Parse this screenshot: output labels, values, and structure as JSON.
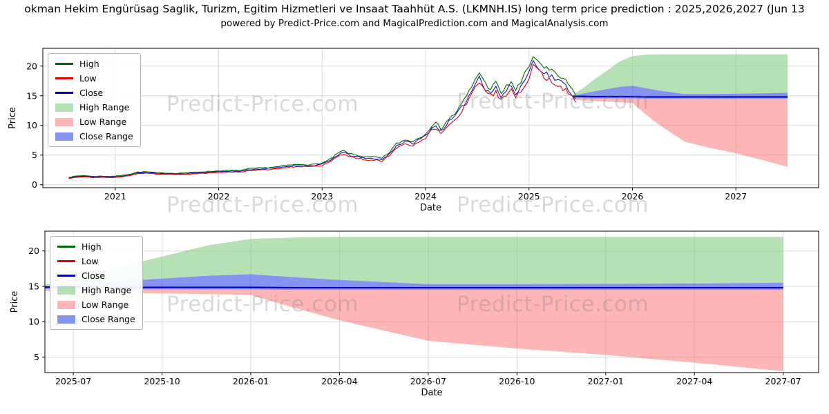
{
  "watermark": {
    "text": "Predict-Price.com"
  },
  "colors": {
    "high": "#006b00",
    "low": "#e00000",
    "close": "#0000b4",
    "high_range": "rgba(120,200,120,0.55)",
    "low_range": "rgba(250,90,90,0.45)",
    "close_range": "rgba(60,80,230,0.62)",
    "watermark": "rgba(128,128,128,0.30)",
    "grid": "#d8d8d8"
  },
  "legend": {
    "items": [
      {
        "key": "high",
        "label": "High",
        "type": "line"
      },
      {
        "key": "low",
        "label": "Low",
        "type": "line"
      },
      {
        "key": "close",
        "label": "Close",
        "type": "line"
      },
      {
        "key": "high_range",
        "label": "High Range",
        "type": "patch"
      },
      {
        "key": "low_range",
        "label": "Low Range",
        "type": "patch"
      },
      {
        "key": "close_range",
        "label": "Close Range",
        "type": "patch"
      }
    ]
  },
  "chart_data": [
    {
      "type": "line",
      "title": "okman Hekim Engürüsag Saglik, Turizm, Egitim Hizmetleri ve Insaat Taahhüt A.S. (LKMNH.IS) long term price prediction : 2025,2026,2027 (Jun 13",
      "subtitle": "powered by Predict-Price.com and MagicalPrediction.com and MagicalAnalysis.com",
      "xlabel": "Date",
      "ylabel": "Price",
      "xlim": [
        2020.3,
        2027.8
      ],
      "ylim": [
        -0.5,
        23
      ],
      "grid": true,
      "legend_position": "upper left",
      "xticks": [
        {
          "v": 2021,
          "label": "2021"
        },
        {
          "v": 2022,
          "label": "2022"
        },
        {
          "v": 2023,
          "label": "2023"
        },
        {
          "v": 2024,
          "label": "2024"
        },
        {
          "v": 2025,
          "label": "2025"
        },
        {
          "v": 2026,
          "label": "2026"
        },
        {
          "v": 2027,
          "label": "2027"
        }
      ],
      "yticks": [
        0,
        5,
        10,
        15,
        20
      ],
      "series": {
        "x": [
          2020.55,
          2020.62,
          2020.7,
          2020.78,
          2020.85,
          2020.95,
          2021.05,
          2021.15,
          2021.22,
          2021.3,
          2021.4,
          2021.5,
          2021.6,
          2021.7,
          2021.8,
          2021.9,
          2022.0,
          2022.1,
          2022.2,
          2022.3,
          2022.4,
          2022.5,
          2022.6,
          2022.7,
          2022.8,
          2022.9,
          2023.0,
          2023.08,
          2023.15,
          2023.2,
          2023.28,
          2023.35,
          2023.42,
          2023.5,
          2023.58,
          2023.65,
          2023.72,
          2023.8,
          2023.88,
          2023.95,
          2024.0,
          2024.06,
          2024.1,
          2024.15,
          2024.2,
          2024.28,
          2024.35,
          2024.42,
          2024.48,
          2024.52,
          2024.58,
          2024.63,
          2024.68,
          2024.73,
          2024.78,
          2024.83,
          2024.87,
          2024.92,
          2024.96,
          2025.0,
          2025.04,
          2025.08,
          2025.12,
          2025.17,
          2025.22,
          2025.28,
          2025.33,
          2025.38,
          2025.42,
          2025.45
        ],
        "close": [
          1.15,
          1.35,
          1.45,
          1.3,
          1.35,
          1.3,
          1.4,
          1.7,
          2.0,
          2.05,
          1.9,
          1.85,
          1.8,
          1.9,
          2.0,
          2.1,
          2.2,
          2.3,
          2.25,
          2.55,
          2.65,
          2.75,
          2.95,
          3.15,
          3.25,
          3.2,
          3.45,
          4.1,
          5.0,
          5.45,
          4.9,
          4.7,
          4.4,
          4.45,
          4.2,
          5.2,
          6.6,
          7.2,
          7.0,
          7.7,
          8.3,
          9.6,
          9.9,
          9.0,
          10.2,
          11.4,
          13.0,
          15.0,
          17.0,
          18.3,
          16.2,
          15.6,
          16.4,
          14.8,
          15.8,
          16.8,
          15.2,
          16.5,
          17.8,
          19.0,
          20.8,
          20.3,
          19.4,
          18.7,
          18.2,
          17.6,
          17.0,
          16.2,
          15.3,
          14.5
        ],
        "high": [
          1.25,
          1.45,
          1.56,
          1.4,
          1.45,
          1.4,
          1.51,
          1.82,
          2.13,
          2.18,
          2.03,
          1.97,
          1.92,
          2.03,
          2.13,
          2.23,
          2.34,
          2.44,
          2.39,
          2.7,
          2.81,
          2.91,
          3.12,
          3.33,
          3.43,
          3.38,
          3.64,
          4.31,
          5.25,
          5.72,
          5.15,
          4.94,
          4.63,
          4.68,
          4.42,
          5.46,
          6.91,
          7.54,
          7.33,
          8.06,
          8.68,
          10.03,
          10.35,
          9.41,
          10.66,
          11.91,
          13.57,
          15.65,
          17.73,
          19.08,
          16.9,
          16.27,
          17.11,
          15.44,
          16.48,
          17.52,
          15.86,
          17.21,
          18.56,
          19.81,
          21.68,
          21.16,
          20.23,
          19.5,
          18.98,
          18.35,
          17.73,
          16.9,
          15.96,
          15.13
        ],
        "low": [
          1.05,
          1.25,
          1.34,
          1.2,
          1.25,
          1.2,
          1.29,
          1.58,
          1.87,
          1.92,
          1.77,
          1.73,
          1.68,
          1.77,
          1.87,
          1.97,
          2.06,
          2.16,
          2.11,
          2.4,
          2.49,
          2.59,
          2.78,
          2.97,
          3.07,
          3.02,
          3.26,
          3.89,
          4.75,
          5.18,
          4.65,
          4.46,
          4.17,
          4.22,
          3.98,
          4.94,
          6.29,
          6.86,
          6.67,
          7.34,
          7.92,
          9.17,
          9.45,
          8.59,
          9.74,
          10.89,
          12.43,
          14.35,
          16.27,
          17.52,
          15.5,
          14.93,
          15.69,
          14.16,
          15.12,
          16.08,
          14.54,
          15.79,
          17.04,
          18.19,
          19.92,
          19.44,
          18.57,
          17.9,
          17.42,
          16.85,
          16.27,
          15.5,
          14.64,
          13.87
        ]
      },
      "forecast": {
        "x": [
          2025.42,
          2025.5,
          2025.62,
          2025.75,
          2025.88,
          2026.0,
          2026.12,
          2026.25,
          2026.5,
          2026.75,
          2027.0,
          2027.25,
          2027.5
        ],
        "high_upper": [
          15.2,
          16.0,
          17.6,
          19.2,
          20.8,
          21.7,
          21.9,
          22.0,
          22.0,
          22.0,
          22.0,
          22.0,
          22.0
        ],
        "close_upper": [
          15.0,
          15.3,
          15.7,
          16.1,
          16.5,
          16.7,
          16.3,
          15.9,
          15.3,
          15.3,
          15.35,
          15.4,
          15.5
        ],
        "close": [
          14.9,
          14.9,
          14.85,
          14.85,
          14.85,
          14.85,
          14.8,
          14.8,
          14.8,
          14.8,
          14.8,
          14.8,
          14.8
        ],
        "close_lower": [
          14.6,
          14.6,
          14.55,
          14.55,
          14.55,
          14.55,
          14.5,
          14.5,
          14.5,
          14.5,
          14.5,
          14.5,
          14.5
        ],
        "low_lower": [
          14.35,
          14.25,
          14.1,
          14.0,
          13.9,
          13.8,
          12.0,
          10.2,
          7.3,
          6.2,
          5.3,
          4.2,
          3.0
        ]
      }
    },
    {
      "type": "area",
      "xlabel": "Date",
      "ylabel": "Price",
      "xlim": [
        2025.42,
        2027.6
      ],
      "ylim": [
        2.8,
        22.8
      ],
      "grid": true,
      "legend_position": "upper left",
      "xticks": [
        {
          "v": 2025.5,
          "label": "2025-07"
        },
        {
          "v": 2025.75,
          "label": "2025-10"
        },
        {
          "v": 2026.0,
          "label": "2026-01"
        },
        {
          "v": 2026.25,
          "label": "2026-04"
        },
        {
          "v": 2026.5,
          "label": "2026-07"
        },
        {
          "v": 2026.75,
          "label": "2026-10"
        },
        {
          "v": 2027.0,
          "label": "2027-01"
        },
        {
          "v": 2027.25,
          "label": "2027-04"
        },
        {
          "v": 2027.5,
          "label": "2027-07"
        }
      ],
      "yticks": [
        5,
        10,
        15,
        20
      ],
      "forecast": {
        "x": [
          2025.42,
          2025.5,
          2025.62,
          2025.75,
          2025.88,
          2026.0,
          2026.12,
          2026.25,
          2026.5,
          2026.75,
          2027.0,
          2027.25,
          2027.5
        ],
        "high_upper": [
          15.2,
          16.0,
          17.6,
          19.2,
          20.8,
          21.7,
          21.9,
          22.0,
          22.0,
          22.0,
          22.0,
          22.0,
          22.0
        ],
        "close_upper": [
          15.0,
          15.3,
          15.7,
          16.1,
          16.5,
          16.7,
          16.3,
          15.9,
          15.3,
          15.3,
          15.35,
          15.4,
          15.5
        ],
        "close": [
          14.9,
          14.9,
          14.85,
          14.85,
          14.85,
          14.85,
          14.8,
          14.8,
          14.8,
          14.8,
          14.8,
          14.8,
          14.8
        ],
        "close_lower": [
          14.6,
          14.6,
          14.55,
          14.55,
          14.55,
          14.55,
          14.5,
          14.5,
          14.5,
          14.5,
          14.5,
          14.5,
          14.5
        ],
        "low_lower": [
          14.35,
          14.25,
          14.1,
          14.0,
          13.9,
          13.8,
          12.0,
          10.2,
          7.3,
          6.2,
          5.3,
          4.2,
          3.0
        ]
      }
    }
  ]
}
